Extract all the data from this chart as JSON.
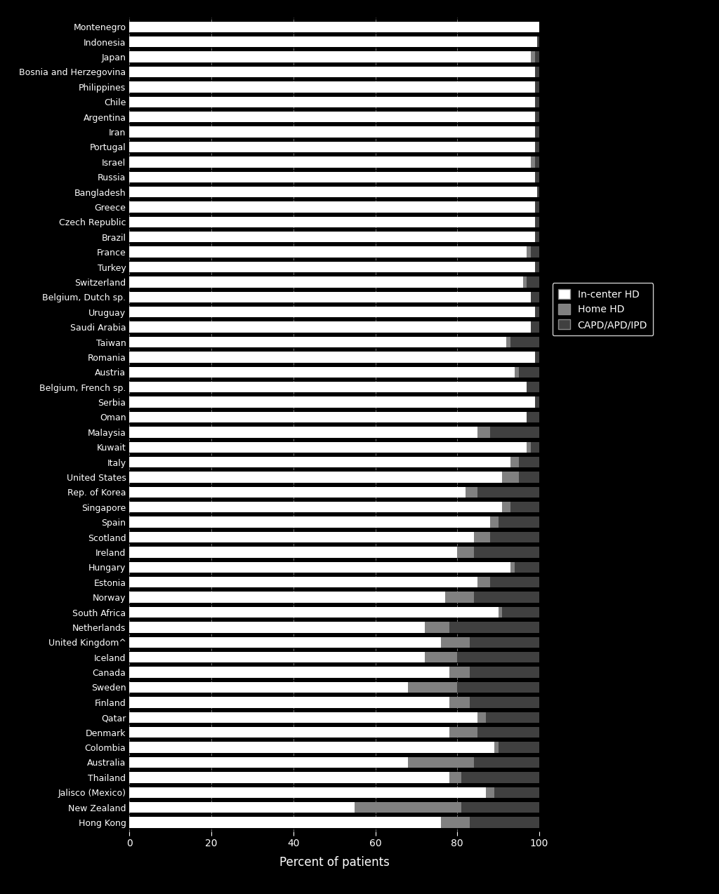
{
  "countries": [
    "Montenegro",
    "Indonesia",
    "Japan",
    "Bosnia and Herzegovina",
    "Philippines",
    "Chile",
    "Argentina",
    "Iran",
    "Portugal",
    "Israel",
    "Russia",
    "Bangladesh",
    "Greece",
    "Czech Republic",
    "Brazil",
    "France",
    "Turkey",
    "Switzerland",
    "Belgium, Dutch sp.",
    "Uruguay",
    "Saudi Arabia",
    "Taiwan",
    "Romania",
    "Austria",
    "Belgium, French sp.",
    "Serbia",
    "Oman",
    "Malaysia",
    "Kuwait",
    "Italy",
    "United States",
    "Rep. of Korea",
    "Singapore",
    "Spain",
    "Scotland",
    "Ireland",
    "Hungary",
    "Estonia",
    "Norway",
    "South Africa",
    "Netherlands",
    "United Kingdom^",
    "Iceland",
    "Canada",
    "Sweden",
    "Finland",
    "Qatar",
    "Denmark",
    "Colombia",
    "Australia",
    "Thailand",
    "Jalisco (Mexico)",
    "New Zealand",
    "Hong Kong"
  ],
  "incenter_hd": [
    100,
    99.5,
    98,
    99,
    99,
    99,
    99,
    99,
    99,
    98,
    99,
    99.5,
    99,
    99,
    99,
    97,
    99,
    96,
    98,
    99,
    98,
    92,
    99,
    94,
    97,
    99,
    97,
    85,
    97,
    93,
    91,
    82,
    91,
    88,
    84,
    80,
    93,
    85,
    77,
    90,
    72,
    76,
    72,
    78,
    68,
    78,
    85,
    78,
    89,
    68,
    78,
    87,
    55,
    76
  ],
  "home_hd": [
    0,
    0,
    1,
    0,
    0,
    0,
    0,
    0,
    0,
    1,
    0,
    0,
    0,
    0,
    0,
    1,
    0,
    1,
    0,
    0,
    0,
    1,
    0,
    1,
    0,
    0,
    0,
    3,
    1,
    2,
    4,
    3,
    2,
    2,
    4,
    4,
    1,
    3,
    7,
    1,
    6,
    7,
    8,
    5,
    12,
    5,
    2,
    7,
    1,
    16,
    3,
    2,
    26,
    7
  ],
  "capd_apd_ipd": [
    0,
    0.5,
    1,
    1,
    1,
    1,
    1,
    1,
    1,
    1,
    1,
    0.5,
    1,
    1,
    1,
    2,
    1,
    3,
    2,
    1,
    2,
    7,
    1,
    5,
    3,
    1,
    3,
    12,
    2,
    5,
    5,
    15,
    7,
    10,
    12,
    16,
    6,
    12,
    16,
    9,
    22,
    17,
    20,
    17,
    20,
    17,
    13,
    15,
    10,
    16,
    19,
    11,
    19,
    17
  ],
  "xlabel": "Percent of patients",
  "xlim": [
    0,
    100
  ],
  "xticks": [
    0,
    20,
    40,
    60,
    80,
    100
  ],
  "background_color": "#000000",
  "text_color": "#ffffff",
  "bar_height": 0.72,
  "grid_color": "#777777",
  "incenter_color": "#ffffff",
  "homehd_color": "#808080",
  "capd_color": "#404040",
  "legend_face_color": "#000000",
  "legend_edge_color": "#ffffff"
}
